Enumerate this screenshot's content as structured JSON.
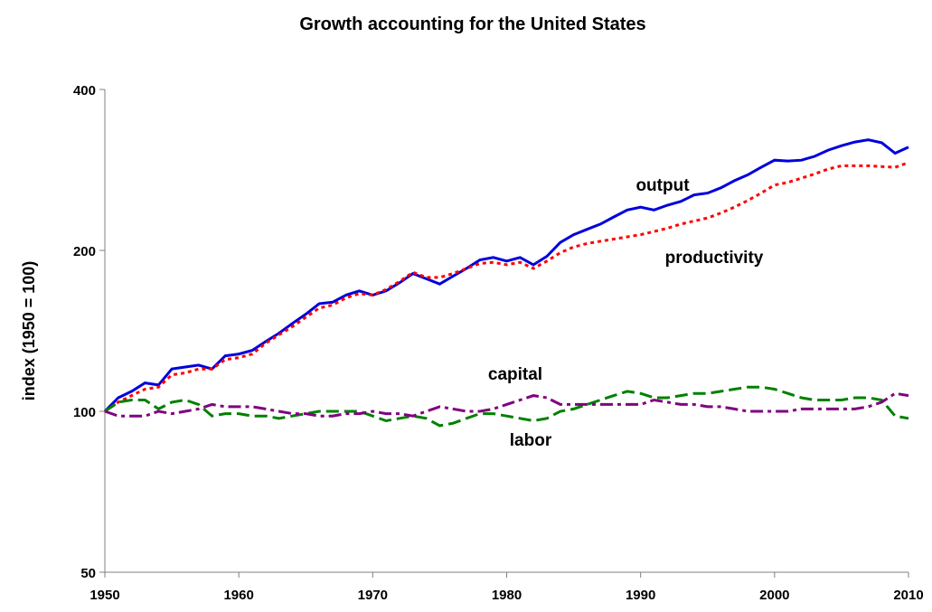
{
  "chart_data": {
    "type": "line",
    "title": "Growth accounting for the United States",
    "y_label": "index (1950 = 100)",
    "x": [
      1950,
      1951,
      1952,
      1953,
      1954,
      1955,
      1956,
      1957,
      1958,
      1959,
      1960,
      1961,
      1962,
      1963,
      1964,
      1965,
      1966,
      1967,
      1968,
      1969,
      1970,
      1971,
      1972,
      1973,
      1974,
      1975,
      1976,
      1977,
      1978,
      1979,
      1980,
      1981,
      1982,
      1983,
      1984,
      1985,
      1986,
      1987,
      1988,
      1989,
      1990,
      1991,
      1992,
      1993,
      1994,
      1995,
      1996,
      1997,
      1998,
      1999,
      2000,
      2001,
      2002,
      2003,
      2004,
      2005,
      2006,
      2007,
      2008,
      2009,
      2010
    ],
    "xlim": [
      1950,
      2010
    ],
    "xticks": [
      1950,
      1960,
      1970,
      1980,
      1990,
      2000,
      2010
    ],
    "ylim": [
      50,
      400
    ],
    "yticks": [
      50,
      100,
      200,
      400
    ],
    "log_scale": true,
    "grid": false,
    "series": [
      {
        "name": "output",
        "color": "#0000dd",
        "dash": "solid",
        "values": [
          100,
          106,
          109,
          113,
          112,
          120,
          121,
          122,
          120,
          127,
          128,
          130,
          135,
          140,
          146,
          152,
          159,
          160,
          165,
          168,
          165,
          168,
          174,
          181,
          177,
          173,
          179,
          185,
          192,
          194,
          191,
          194,
          188,
          195,
          207,
          214,
          219,
          224,
          231,
          238,
          241,
          238,
          243,
          247,
          254,
          256,
          262,
          270,
          277,
          286,
          295,
          294,
          295,
          300,
          308,
          314,
          319,
          322,
          318,
          304,
          312
        ]
      },
      {
        "name": "productivity",
        "color": "#ff0000",
        "dash": "dotted",
        "values": [
          100,
          104,
          107,
          110,
          111,
          117,
          118,
          120,
          120,
          125,
          126,
          128,
          134,
          139,
          144,
          150,
          156,
          158,
          163,
          166,
          165,
          169,
          175,
          182,
          178,
          178,
          181,
          185,
          189,
          190,
          188,
          190,
          185,
          191,
          198,
          203,
          206,
          208,
          210,
          212,
          214,
          217,
          220,
          224,
          227,
          230,
          235,
          241,
          248,
          256,
          265,
          268,
          273,
          278,
          284,
          288,
          288,
          288,
          287,
          286,
          292
        ]
      },
      {
        "name": "capital",
        "color": "#008000",
        "dash": "dashed",
        "values": [
          100,
          104,
          105,
          105,
          101,
          104,
          105,
          103,
          98,
          99,
          99,
          98,
          98,
          97,
          98,
          99,
          100,
          100,
          100,
          100,
          98,
          96,
          97,
          98,
          97,
          94,
          95,
          97,
          99,
          99,
          98,
          97,
          96,
          97,
          100,
          101,
          103,
          105,
          107,
          109,
          108,
          106,
          106,
          107,
          108,
          108,
          109,
          110,
          111,
          111,
          110,
          108,
          106,
          105,
          105,
          105,
          106,
          106,
          105,
          98,
          97
        ]
      },
      {
        "name": "labor",
        "color": "#800080",
        "dash": "dashdot",
        "values": [
          100,
          98,
          98,
          98,
          100,
          99,
          100,
          101,
          103,
          102,
          102,
          102,
          101,
          100,
          99,
          99,
          98,
          98,
          99,
          99,
          100,
          99,
          99,
          98,
          100,
          102,
          101,
          100,
          100,
          101,
          103,
          105,
          107,
          106,
          103,
          103,
          103,
          103,
          103,
          103,
          103,
          105,
          104,
          103,
          103,
          102,
          102,
          101,
          100,
          100,
          100,
          100,
          101,
          101,
          101,
          101,
          101,
          102,
          104,
          108,
          107
        ]
      }
    ]
  }
}
